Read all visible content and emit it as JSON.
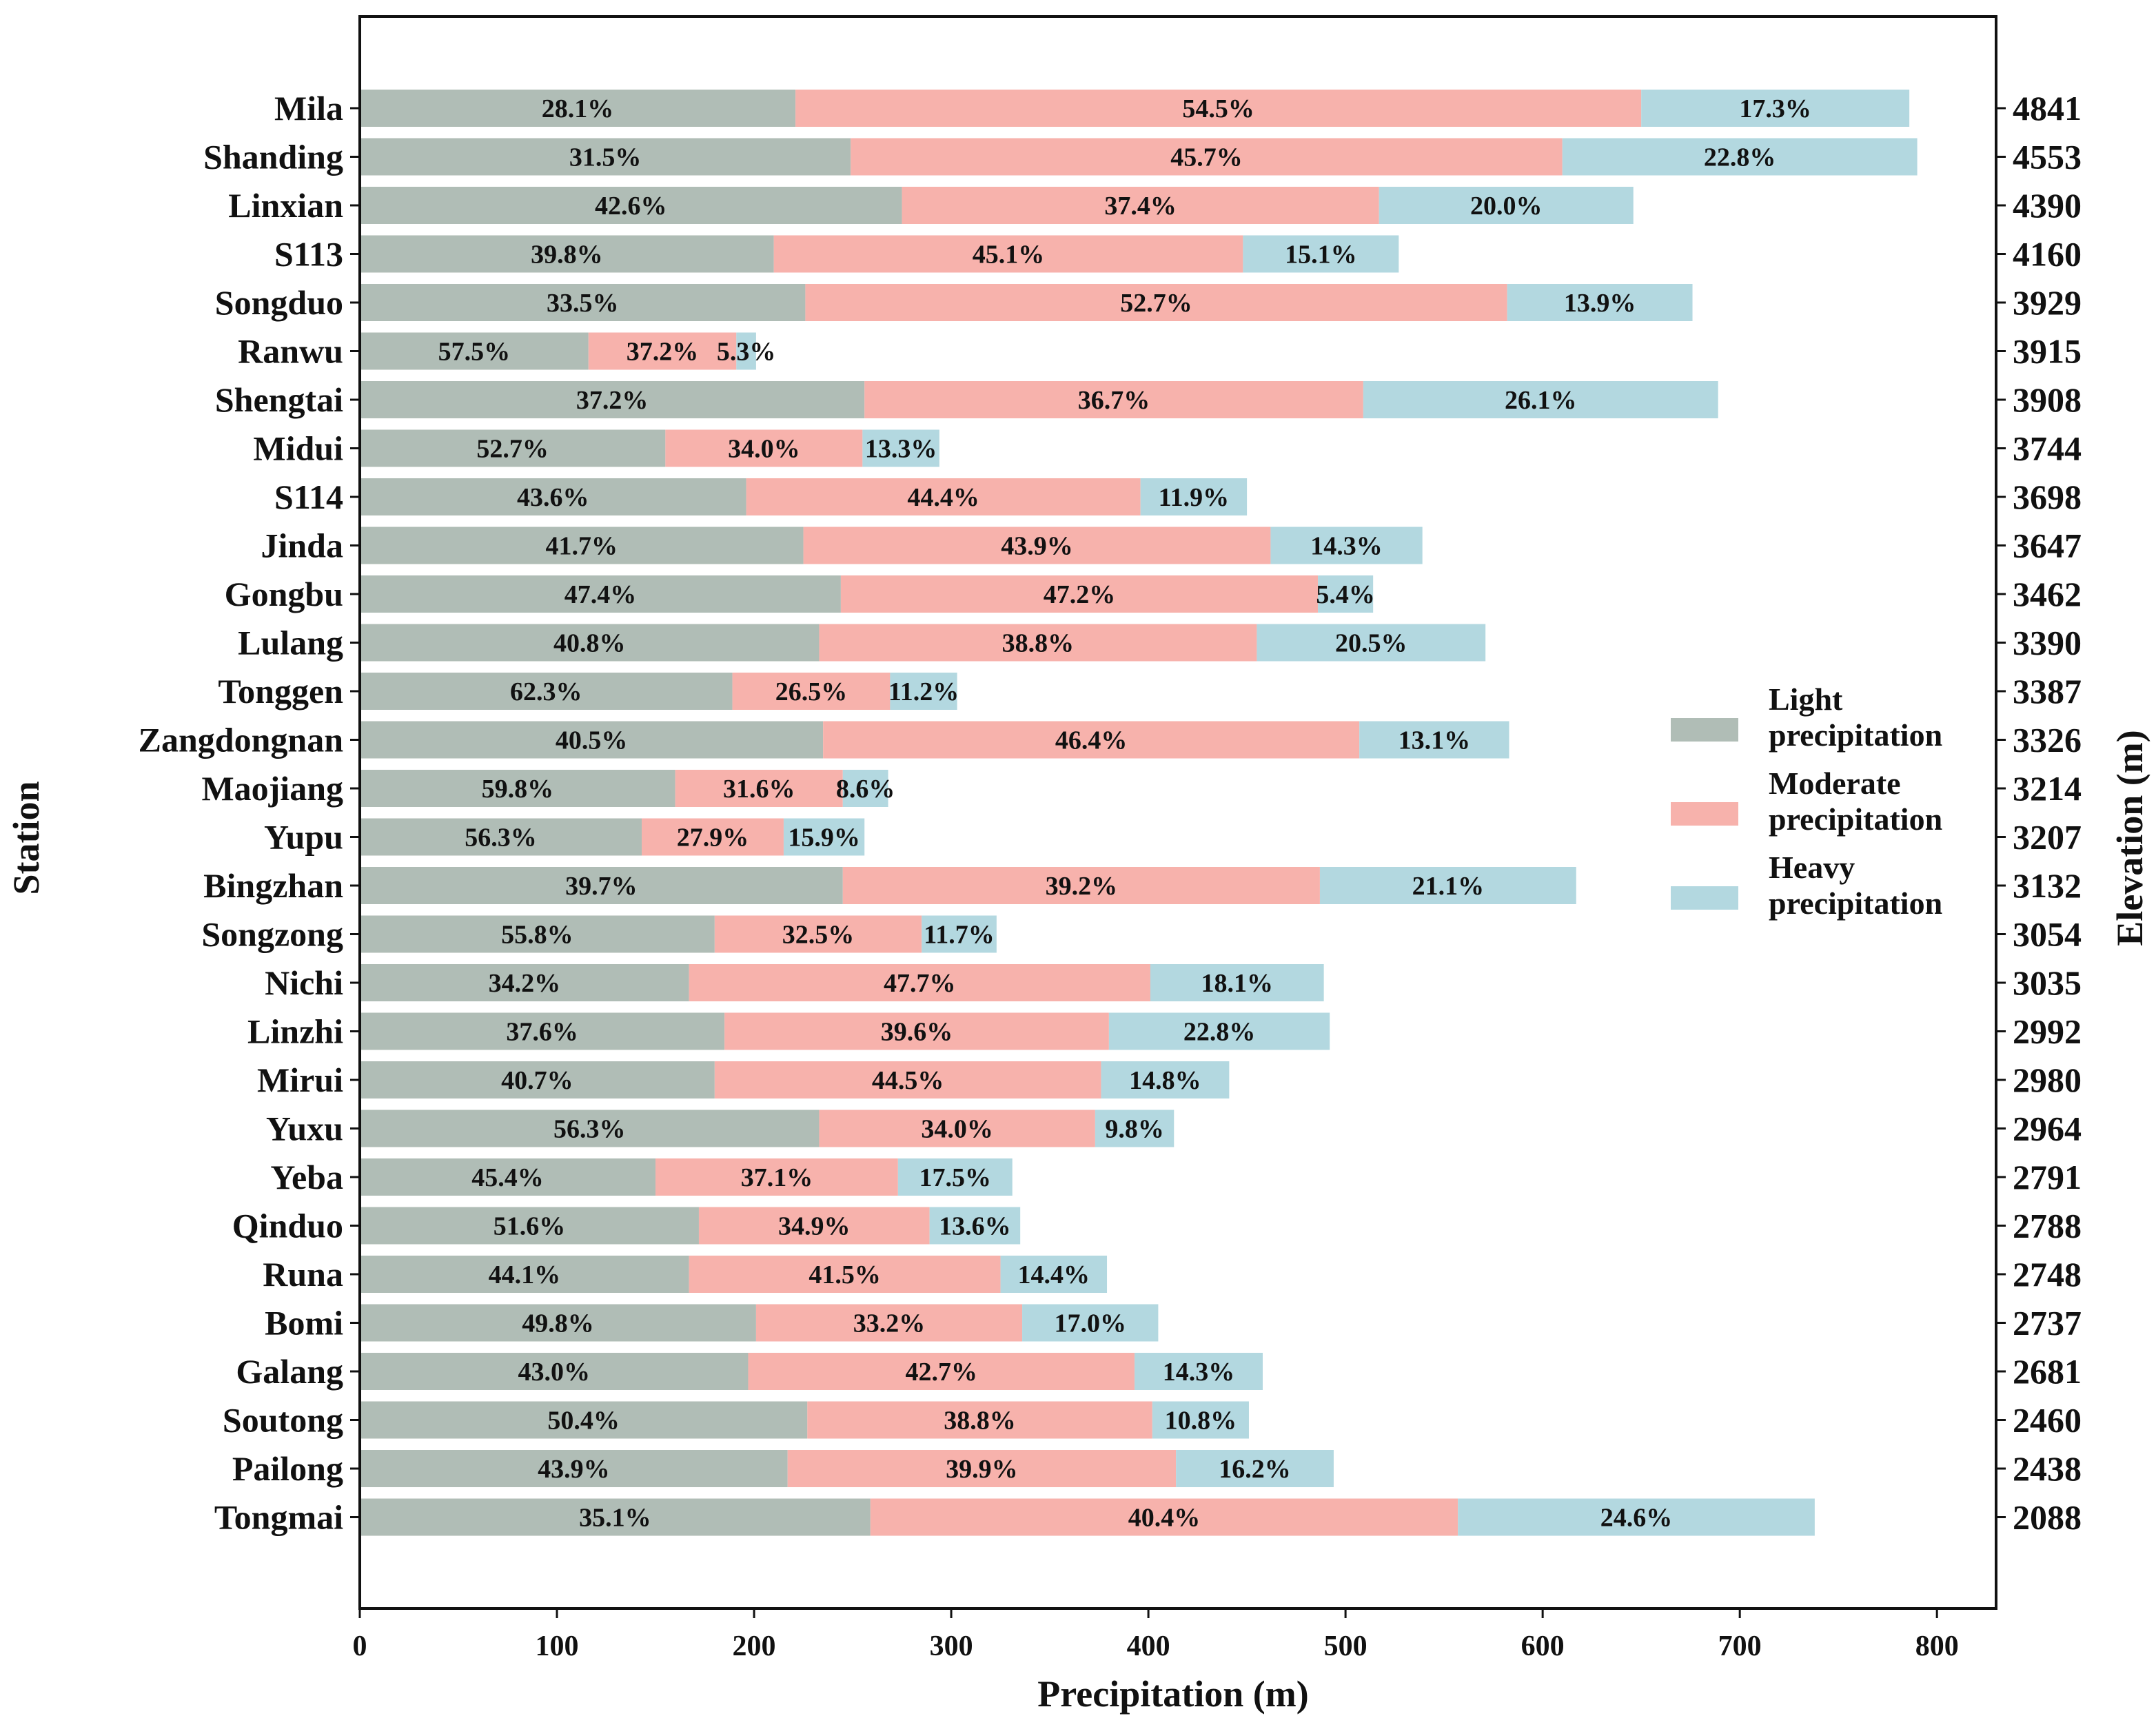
{
  "chart_data": {
    "type": "bar",
    "orientation": "horizontal",
    "stacked": true,
    "xlabel": "Precipitation (m)",
    "ylabel": "Station",
    "y2label": "Elevation (m)",
    "xlim": [
      0,
      830
    ],
    "xticks": [
      0,
      100,
      200,
      300,
      400,
      500,
      600,
      700,
      800
    ],
    "legend": {
      "placement": "center-right",
      "entries": [
        {
          "lines": [
            "Light",
            "precipitation"
          ],
          "color": "#b0bdb6"
        },
        {
          "lines": [
            "Moderate",
            "precipitation"
          ],
          "color": "#f7b2ac"
        },
        {
          "lines": [
            "Heavy",
            "precipitation"
          ],
          "color": "#b3d8e0"
        }
      ]
    },
    "series_names": [
      "Light precipitation",
      "Moderate precipitation",
      "Heavy precipitation"
    ],
    "colors": [
      "#b0bdb6",
      "#f7b2ac",
      "#b3d8e0"
    ],
    "stations": [
      {
        "name": "Mila",
        "elevation": "4841",
        "values": [
          221,
          429,
          136
        ],
        "labels": [
          "28.1%",
          "54.5%",
          "17.3%"
        ]
      },
      {
        "name": "Shanding",
        "elevation": "4553",
        "values": [
          249,
          361,
          180
        ],
        "labels": [
          "31.5%",
          "45.7%",
          "22.8%"
        ]
      },
      {
        "name": "Linxian",
        "elevation": "4390",
        "values": [
          275,
          242,
          129
        ],
        "labels": [
          "42.6%",
          "37.4%",
          "20.0%"
        ]
      },
      {
        "name": "S113",
        "elevation": "4160",
        "values": [
          210,
          238,
          79
        ],
        "labels": [
          "39.8%",
          "45.1%",
          "15.1%"
        ]
      },
      {
        "name": "Songduo",
        "elevation": "3929",
        "values": [
          226,
          356,
          94
        ],
        "labels": [
          "33.5%",
          "52.7%",
          "13.9%"
        ]
      },
      {
        "name": "Ranwu",
        "elevation": "3915",
        "values": [
          116,
          75,
          10
        ],
        "labels": [
          "57.5%",
          "37.2%",
          "5.3%"
        ]
      },
      {
        "name": "Shengtai",
        "elevation": "3908",
        "values": [
          256,
          253,
          180
        ],
        "labels": [
          "37.2%",
          "36.7%",
          "26.1%"
        ]
      },
      {
        "name": "Midui",
        "elevation": "3744",
        "values": [
          155,
          100,
          39
        ],
        "labels": [
          "52.7%",
          "34.0%",
          "13.3%"
        ]
      },
      {
        "name": "S114",
        "elevation": "3698",
        "values": [
          196,
          200,
          54
        ],
        "labels": [
          "43.6%",
          "44.4%",
          "11.9%"
        ]
      },
      {
        "name": "Jinda",
        "elevation": "3647",
        "values": [
          225,
          237,
          77
        ],
        "labels": [
          "41.7%",
          "43.9%",
          "14.3%"
        ]
      },
      {
        "name": "Gongbu",
        "elevation": "3462",
        "values": [
          244,
          242,
          28
        ],
        "labels": [
          "47.4%",
          "47.2%",
          "5.4%"
        ]
      },
      {
        "name": "Lulang",
        "elevation": "3390",
        "values": [
          233,
          222,
          116
        ],
        "labels": [
          "40.8%",
          "38.8%",
          "20.5%"
        ]
      },
      {
        "name": "Tonggen",
        "elevation": "3387",
        "values": [
          189,
          80,
          34
        ],
        "labels": [
          "62.3%",
          "26.5%",
          "11.2%"
        ]
      },
      {
        "name": "Zangdongnan",
        "elevation": "3326",
        "values": [
          235,
          272,
          76
        ],
        "labels": [
          "40.5%",
          "46.4%",
          "13.1%"
        ]
      },
      {
        "name": "Maojiang",
        "elevation": "3214",
        "values": [
          160,
          85,
          23
        ],
        "labels": [
          "59.8%",
          "31.6%",
          "8.6%"
        ]
      },
      {
        "name": "Yupu",
        "elevation": "3207",
        "values": [
          143,
          72,
          41
        ],
        "labels": [
          "56.3%",
          "27.9%",
          "15.9%"
        ]
      },
      {
        "name": "Bingzhan",
        "elevation": "3132",
        "values": [
          245,
          242,
          130
        ],
        "labels": [
          "39.7%",
          "39.2%",
          "21.1%"
        ]
      },
      {
        "name": "Songzong",
        "elevation": "3054",
        "values": [
          180,
          105,
          38
        ],
        "labels": [
          "55.8%",
          "32.5%",
          "11.7%"
        ]
      },
      {
        "name": "Nichi",
        "elevation": "3035",
        "values": [
          167,
          234,
          88
        ],
        "labels": [
          "34.2%",
          "47.7%",
          "18.1%"
        ]
      },
      {
        "name": "Linzhi",
        "elevation": "2992",
        "values": [
          185,
          195,
          112
        ],
        "labels": [
          "37.6%",
          "39.6%",
          "22.8%"
        ]
      },
      {
        "name": "Mirui",
        "elevation": "2980",
        "values": [
          180,
          196,
          65
        ],
        "labels": [
          "40.7%",
          "44.5%",
          "14.8%"
        ]
      },
      {
        "name": "Yuxu",
        "elevation": "2964",
        "values": [
          233,
          140,
          40
        ],
        "labels": [
          "56.3%",
          "34.0%",
          "9.8%"
        ]
      },
      {
        "name": "Yeba",
        "elevation": "2791",
        "values": [
          150,
          123,
          58
        ],
        "labels": [
          "45.4%",
          "37.1%",
          "17.5%"
        ]
      },
      {
        "name": "Qinduo",
        "elevation": "2788",
        "values": [
          172,
          117,
          46
        ],
        "labels": [
          "51.6%",
          "34.9%",
          "13.6%"
        ]
      },
      {
        "name": "Runa",
        "elevation": "2748",
        "values": [
          167,
          158,
          54
        ],
        "labels": [
          "44.1%",
          "41.5%",
          "14.4%"
        ]
      },
      {
        "name": "Bomi",
        "elevation": "2737",
        "values": [
          201,
          135,
          69
        ],
        "labels": [
          "49.8%",
          "33.2%",
          "17.0%"
        ]
      },
      {
        "name": "Galang",
        "elevation": "2681",
        "values": [
          197,
          196,
          65
        ],
        "labels": [
          "43.0%",
          "42.7%",
          "14.3%"
        ]
      },
      {
        "name": "Soutong",
        "elevation": "2460",
        "values": [
          227,
          175,
          49
        ],
        "labels": [
          "50.4%",
          "38.8%",
          "10.8%"
        ]
      },
      {
        "name": "Pailong",
        "elevation": "2438",
        "values": [
          217,
          197,
          80
        ],
        "labels": [
          "43.9%",
          "39.9%",
          "16.2%"
        ]
      },
      {
        "name": "Tongmai",
        "elevation": "2088",
        "values": [
          259,
          298,
          181
        ],
        "labels": [
          "35.1%",
          "40.4%",
          "24.6%"
        ]
      }
    ]
  }
}
